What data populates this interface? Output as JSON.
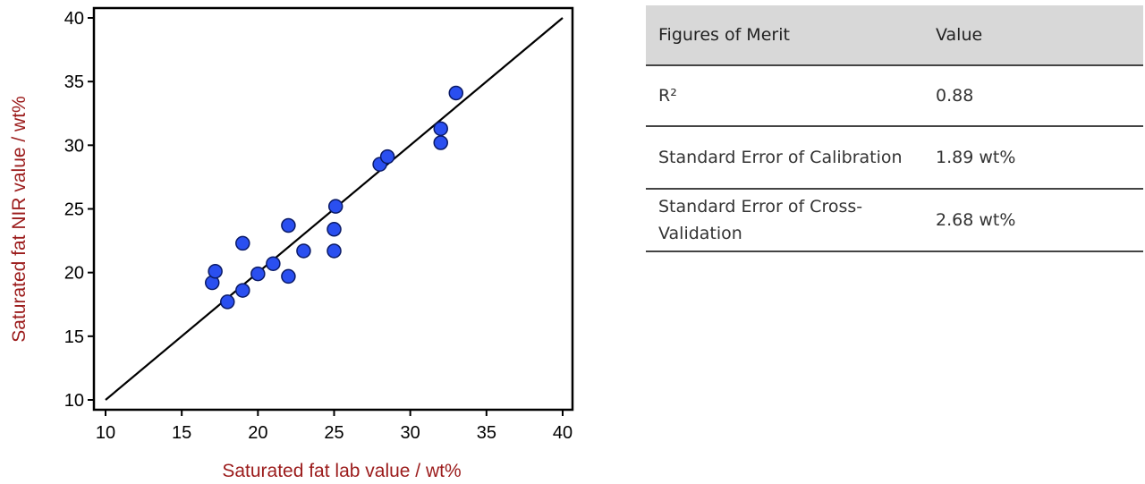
{
  "chart_data": {
    "type": "scatter",
    "xlabel": "Saturated fat lab value / wt%",
    "ylabel": "Saturated fat NIR value / wt%",
    "xlim": [
      10,
      40
    ],
    "ylim": [
      10,
      40
    ],
    "xticks": [
      10,
      15,
      20,
      25,
      30,
      35,
      40
    ],
    "yticks": [
      10,
      15,
      20,
      25,
      30,
      35,
      40
    ],
    "grid": false,
    "point_color": "#2a4ff0",
    "axis_title_color": "#9b1b1b",
    "fit_line": {
      "x": [
        10,
        40
      ],
      "y": [
        10,
        40
      ]
    },
    "points": [
      {
        "x": 17.0,
        "y": 19.2
      },
      {
        "x": 17.2,
        "y": 20.1
      },
      {
        "x": 18.0,
        "y": 17.7
      },
      {
        "x": 19.0,
        "y": 18.6
      },
      {
        "x": 19.0,
        "y": 22.3
      },
      {
        "x": 20.0,
        "y": 19.9
      },
      {
        "x": 21.0,
        "y": 20.7
      },
      {
        "x": 22.0,
        "y": 19.7
      },
      {
        "x": 22.0,
        "y": 23.7
      },
      {
        "x": 23.0,
        "y": 21.7
      },
      {
        "x": 25.0,
        "y": 21.7
      },
      {
        "x": 25.0,
        "y": 23.4
      },
      {
        "x": 25.1,
        "y": 25.2
      },
      {
        "x": 28.0,
        "y": 28.5
      },
      {
        "x": 28.5,
        "y": 29.1
      },
      {
        "x": 32.0,
        "y": 30.2
      },
      {
        "x": 32.0,
        "y": 31.3
      },
      {
        "x": 33.0,
        "y": 34.1
      }
    ]
  },
  "table": {
    "headers": [
      "Figures of Merit",
      "Value"
    ],
    "rows": [
      {
        "label": "R²",
        "value": "0.88"
      },
      {
        "label": "Standard Error of Calibration",
        "value": "1.89 wt%"
      },
      {
        "label": "Standard Error of Cross-Validation",
        "value": "2.68 wt%"
      }
    ]
  }
}
